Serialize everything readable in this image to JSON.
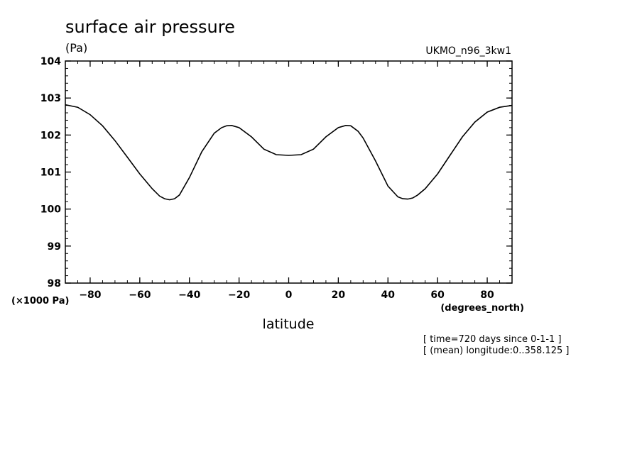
{
  "chart_data": {
    "type": "line",
    "title": "surface air pressure",
    "units": "(Pa)",
    "source": "UKMO_n96_3kw1",
    "xlabel": "latitude",
    "xunits": "(degrees_north)",
    "yscale_label": "(×1000 Pa)",
    "xlim": [
      -90,
      90
    ],
    "ylim": [
      98,
      104
    ],
    "xticks": [
      -80,
      -60,
      -40,
      -20,
      0,
      20,
      40,
      60,
      80
    ],
    "yticks": [
      98,
      99,
      100,
      101,
      102,
      103,
      104
    ],
    "notes": [
      "[ time=720 days since 0-1-1 ]",
      "[ (mean) longitude:0..358.125 ]"
    ],
    "grid": false,
    "series": [
      {
        "x": [
          -90,
          -85,
          -80,
          -75,
          -70,
          -65,
          -60,
          -55,
          -52,
          -50,
          -48,
          -46,
          -44,
          -40,
          -35,
          -30,
          -27,
          -25,
          -23,
          -20,
          -15,
          -10,
          -5,
          0,
          5,
          10,
          15,
          20,
          23,
          25,
          28,
          30,
          35,
          40,
          44,
          46,
          48,
          50,
          52,
          55,
          60,
          65,
          70,
          75,
          80,
          85,
          90
        ],
        "y": [
          102.82,
          102.75,
          102.55,
          102.25,
          101.85,
          101.4,
          100.95,
          100.55,
          100.35,
          100.28,
          100.25,
          100.28,
          100.38,
          100.85,
          101.55,
          102.05,
          102.2,
          102.25,
          102.26,
          102.2,
          101.95,
          101.62,
          101.47,
          101.45,
          101.47,
          101.62,
          101.95,
          102.2,
          102.26,
          102.25,
          102.1,
          101.92,
          101.3,
          100.62,
          100.33,
          100.28,
          100.27,
          100.3,
          100.38,
          100.55,
          100.95,
          101.45,
          101.95,
          102.35,
          102.62,
          102.75,
          102.8
        ]
      }
    ]
  }
}
